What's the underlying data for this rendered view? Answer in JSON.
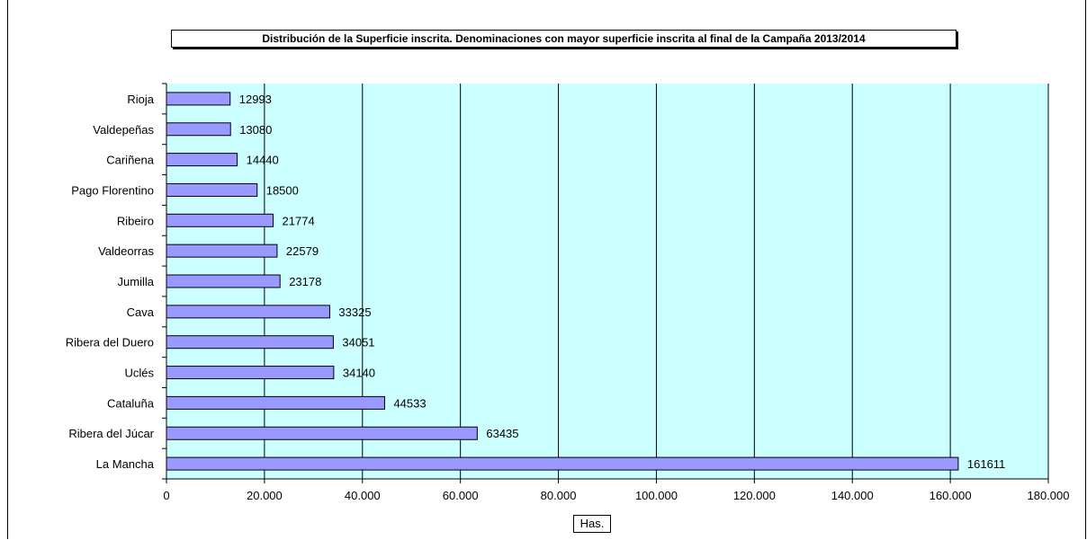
{
  "chart_data": {
    "type": "bar",
    "orientation": "horizontal",
    "title": "Distribución de la Superficie inscrita. Denominaciones con mayor superficie inscrita al final de la Campaña 2013/2014",
    "xlabel": "Has.",
    "ylabel": "",
    "categories": [
      "Rioja",
      "Valdepeñas",
      "Cariñena",
      "Pago Florentino",
      "Ribeiro",
      "Valdeorras",
      "Jumilla",
      "Cava",
      "Ribera del Duero",
      "Uclés",
      "Cataluña",
      "Ribera del Júcar",
      "La Mancha"
    ],
    "values": [
      12993,
      13080,
      14440,
      18500,
      21774,
      22579,
      23178,
      33325,
      34051,
      34140,
      44533,
      63435,
      161611
    ],
    "value_labels": [
      "12993",
      "13080",
      "14440",
      "18500",
      "21774",
      "22579",
      "23178",
      "33325",
      "34051",
      "34140",
      "44533",
      "63435",
      "161611"
    ],
    "xlim": [
      0,
      180000
    ],
    "x_ticks": [
      "0",
      "20.000",
      "40.000",
      "60.000",
      "80.000",
      "100.000",
      "120.000",
      "140.000",
      "160.000",
      "180.000"
    ],
    "grid": true,
    "colors": {
      "plot_bg": "#ccffff",
      "bar_fill": "#9999ff",
      "bar_stroke": "#000000",
      "grid": "#000000"
    }
  }
}
